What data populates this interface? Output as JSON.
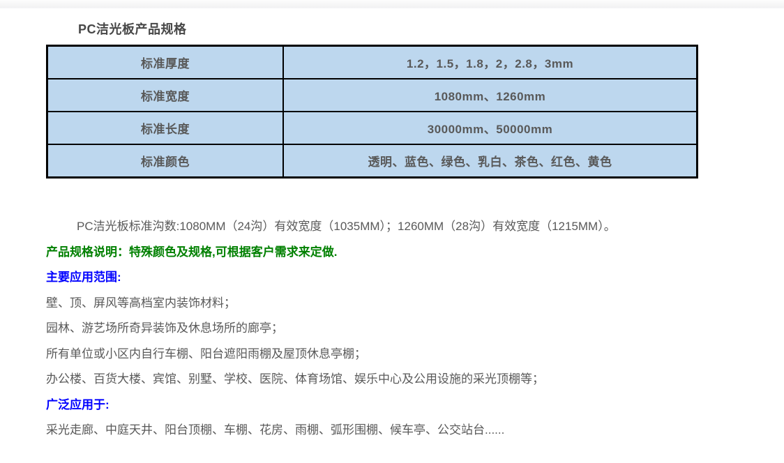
{
  "page": {
    "title": "PC洁光板产品规格"
  },
  "spec_table": {
    "rows": [
      {
        "label": "标准厚度",
        "value": "1.2，1.5，1.8，2，2.8，3mm"
      },
      {
        "label": "标准宽度",
        "value": "1080mm、1260mm"
      },
      {
        "label": "标准长度",
        "value": "30000mm、50000mm"
      },
      {
        "label": "标准颜色",
        "value": "透明、蓝色、绿色、乳白、茶色、红色、黄色"
      }
    ]
  },
  "paragraphs": {
    "groove_info": "PC洁光板标准沟数:1080MM（24沟）有效宽度（1035MM）；1260MM（28沟）有效宽度（1215MM）。",
    "spec_note": "产品规格说明：特殊颜色及规格,可根据客户需求来定做.",
    "main_usage_heading": "主要应用范围:",
    "main_usage_items": [
      "壁、顶、屏风等高档室内装饰材料；",
      "园林、游艺场所奇异装饰及休息场所的廊亭；",
      "所有单位或小区内自行车棚、阳台遮阳雨棚及屋顶休息亭棚；",
      "办公楼、百货大楼、宾馆、别墅、学校、医院、体育场馆、娱乐中心及公用设施的采光顶棚等；"
    ],
    "wide_usage_heading": "广泛应用于:",
    "wide_usage_text": "采光走廊、中庭天井、阳台顶棚、车棚、花房、雨棚、弧形围棚、候车亭、公交站台......"
  },
  "colors": {
    "table_cell_bg": "#bdd7ee",
    "table_border": "#000000",
    "body_text": "#595959",
    "note_green": "#008000",
    "heading_blue": "#0000ff",
    "title_text": "#474747"
  }
}
